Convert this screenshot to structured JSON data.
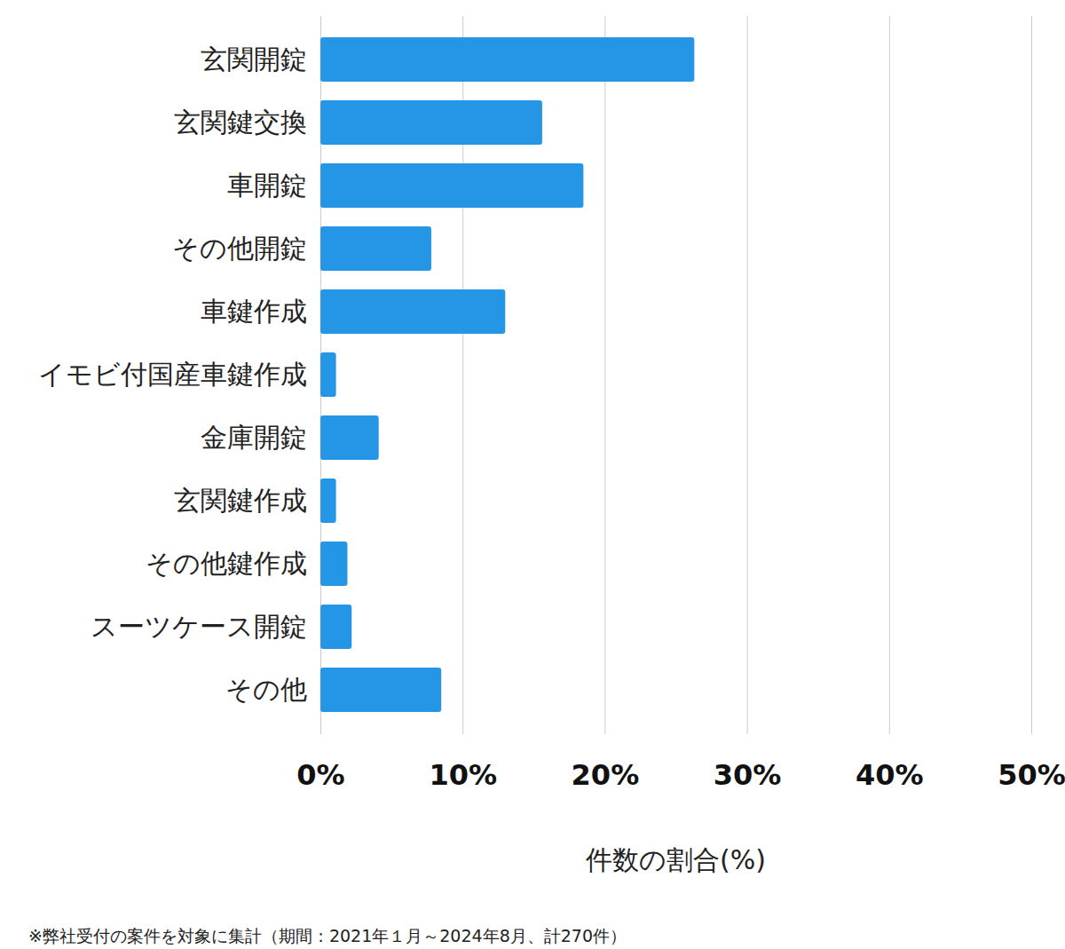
{
  "chart_data": {
    "type": "bar",
    "orientation": "horizontal",
    "categories": [
      "玄関開錠",
      "玄関鍵交換",
      "車開錠",
      "その他開錠",
      "車鍵作成",
      "イモビ付国産車鍵作成",
      "金庫開錠",
      "玄関鍵作成",
      "その他鍵作成",
      "スーツケース開錠",
      "その他"
    ],
    "values": [
      26.3,
      15.6,
      18.5,
      7.8,
      13.0,
      1.1,
      4.1,
      1.1,
      1.9,
      2.2,
      8.5
    ],
    "color": "#2596e6",
    "xlim": [
      0,
      50
    ],
    "xticks": [
      {
        "value": 0,
        "label": "0%"
      },
      {
        "value": 10,
        "label": "10%"
      },
      {
        "value": 20,
        "label": "20%"
      },
      {
        "value": 30,
        "label": "30%"
      },
      {
        "value": 40,
        "label": "40%"
      },
      {
        "value": 50,
        "label": "50%"
      }
    ],
    "x_label": "件数の割合(%)",
    "grid": true,
    "caption": "※弊社受付の案件を対象に集計（期間：2021年１月～2024年8月、計270件）"
  }
}
